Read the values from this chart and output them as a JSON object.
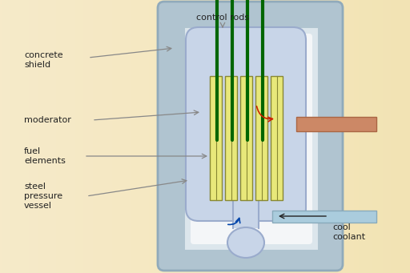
{
  "bg_color": "#f5e8c8",
  "concrete_shield_color": "#b0c4d0",
  "concrete_shield_edge": "#90aabb",
  "steel_vessel_bg": "#e8eef2",
  "steel_vessel_edge": "#b0c4d0",
  "inner_vessel_bg": "#dce6ec",
  "moderator_color": "#c8d5e8",
  "moderator_edge": "#9aabcc",
  "fuel_element_fill": "#e8e87a",
  "fuel_element_edge": "#888833",
  "control_rod_color": "#006600",
  "hot_pipe_color": "#cc8866",
  "hot_pipe_edge": "#aa6644",
  "cool_pipe_color": "#aaccdd",
  "cool_pipe_edge": "#88aabb",
  "label_color": "#222222",
  "arrow_color": "#888888",
  "arrow_hot": "#cc2200",
  "arrow_cool": "#0044aa",
  "text_labels": {
    "concrete_shield": "concrete\nshield",
    "moderator": "moderator",
    "fuel_elements": "fuel\nelements",
    "steel_pressure_vessel": "steel\npressure\nvessel",
    "control_rods": "control rods",
    "cool_coolant": "cool\ncoolant"
  },
  "label_fontsize": 8,
  "figsize": [
    5.12,
    3.41
  ],
  "dpi": 100
}
